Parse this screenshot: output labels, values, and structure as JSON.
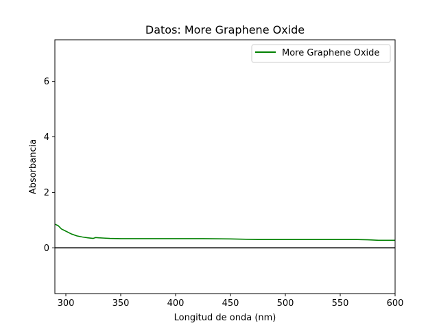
{
  "chart_data": {
    "type": "line",
    "title": "Datos: More Graphene Oxide",
    "xlabel": "Longitud de onda (nm)",
    "ylabel": "Absorbancia",
    "xlim": [
      290,
      600
    ],
    "ylim": [
      -1.65,
      7.5
    ],
    "xticks": [
      300,
      350,
      400,
      450,
      500,
      550,
      600
    ],
    "yticks": [
      0,
      2,
      4,
      6
    ],
    "grid": false,
    "legend_position": "top-right",
    "zero_line": {
      "y": 0,
      "color": "#000000"
    },
    "series": [
      {
        "name": "More Graphene Oxide",
        "color": "#008000",
        "x": [
          290,
          293,
          296,
          300,
          305,
          310,
          315,
          320,
          325,
          327,
          330,
          335,
          340,
          350,
          360,
          380,
          400,
          425,
          450,
          475,
          500,
          525,
          550,
          565,
          575,
          585,
          600
        ],
        "y": [
          0.85,
          0.8,
          0.68,
          0.6,
          0.5,
          0.43,
          0.39,
          0.36,
          0.34,
          0.37,
          0.36,
          0.35,
          0.34,
          0.33,
          0.33,
          0.33,
          0.33,
          0.33,
          0.32,
          0.3,
          0.3,
          0.3,
          0.3,
          0.3,
          0.29,
          0.27,
          0.27
        ]
      }
    ]
  }
}
